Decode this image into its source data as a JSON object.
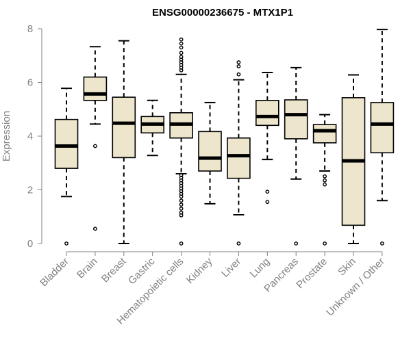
{
  "chart_data": {
    "type": "boxplot",
    "title": "ENSG00000236675 - MTX1P1",
    "xlabel": "",
    "ylabel": "Expression",
    "ylim": [
      0,
      8
    ],
    "yticks": [
      0,
      2,
      4,
      6,
      8
    ],
    "colors": {
      "box_fill": "#ede6cd",
      "stroke": "#000000",
      "axis": "#808080"
    },
    "categories": [
      "Bladder",
      "Brain",
      "Breast",
      "Gastric",
      "Hematopoietic cells",
      "Kidney",
      "Liver",
      "Lung",
      "Pancreas",
      "Prostate",
      "Skin",
      "Unknown / Other"
    ],
    "boxes": [
      {
        "name": "Bladder",
        "q1": 2.8,
        "median": 3.63,
        "q3": 4.62,
        "whisker_low": 1.75,
        "whisker_high": 5.78,
        "outliers": [
          0.0
        ]
      },
      {
        "name": "Brain",
        "q1": 5.33,
        "median": 5.57,
        "q3": 6.2,
        "whisker_low": 4.45,
        "whisker_high": 7.33,
        "outliers": [
          3.63,
          0.55
        ]
      },
      {
        "name": "Breast",
        "q1": 3.2,
        "median": 4.48,
        "q3": 5.45,
        "whisker_low": 0.0,
        "whisker_high": 7.55,
        "outliers": []
      },
      {
        "name": "Gastric",
        "q1": 4.12,
        "median": 4.45,
        "q3": 4.73,
        "whisker_low": 3.28,
        "whisker_high": 5.33,
        "outliers": []
      },
      {
        "name": "Hematopoietic cells",
        "q1": 3.93,
        "median": 4.45,
        "q3": 4.87,
        "whisker_low": 2.6,
        "whisker_high": 6.3,
        "outliers": [
          7.6,
          7.45,
          7.3,
          7.1,
          6.95,
          6.85,
          6.75,
          6.65,
          6.55,
          6.45,
          2.55,
          2.45,
          2.35,
          2.25,
          2.15,
          2.05,
          1.95,
          1.85,
          1.75,
          1.6,
          1.45,
          1.3,
          1.15,
          1.05,
          0.0
        ]
      },
      {
        "name": "Kidney",
        "q1": 2.7,
        "median": 3.18,
        "q3": 4.17,
        "whisker_low": 1.48,
        "whisker_high": 5.25,
        "outliers": []
      },
      {
        "name": "Liver",
        "q1": 2.43,
        "median": 3.27,
        "q3": 3.93,
        "whisker_low": 1.07,
        "whisker_high": 6.1,
        "outliers": [
          6.75,
          6.6,
          6.3,
          0.0
        ]
      },
      {
        "name": "Lung",
        "q1": 4.4,
        "median": 4.73,
        "q3": 5.33,
        "whisker_low": 3.13,
        "whisker_high": 6.37,
        "outliers": [
          1.93,
          1.55
        ]
      },
      {
        "name": "Pancreas",
        "q1": 3.9,
        "median": 4.8,
        "q3": 5.35,
        "whisker_low": 2.4,
        "whisker_high": 6.55,
        "outliers": [
          0.0
        ]
      },
      {
        "name": "Prostate",
        "q1": 3.75,
        "median": 4.2,
        "q3": 4.43,
        "whisker_low": 2.7,
        "whisker_high": 4.8,
        "outliers": [
          2.5,
          2.35,
          2.2,
          0.0
        ]
      },
      {
        "name": "Skin",
        "q1": 0.68,
        "median": 3.08,
        "q3": 5.43,
        "whisker_low": 0.0,
        "whisker_high": 6.28,
        "outliers": []
      },
      {
        "name": "Unknown / Other",
        "q1": 3.38,
        "median": 4.45,
        "q3": 5.25,
        "whisker_low": 1.6,
        "whisker_high": 7.97,
        "outliers": [
          0.0
        ]
      }
    ]
  }
}
